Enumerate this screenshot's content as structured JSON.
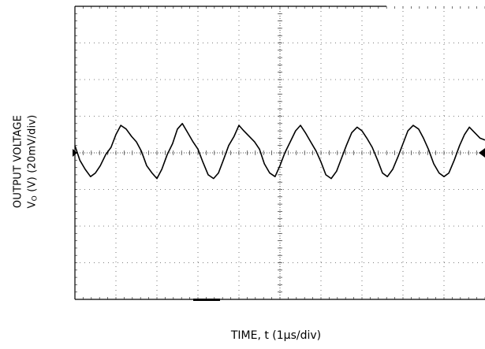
{
  "chart_data": {
    "type": "line",
    "title": "",
    "ylabel_line1": "OUTPUT VOLTAGE",
    "ylabel_line2_prefix": "V",
    "ylabel_line2_sub": "O",
    "ylabel_line2_suffix": " (V) (20mV/div)",
    "xlabel": "TIME, t (1µs/div)",
    "x_divisions": 10,
    "y_divisions": 8,
    "x_unit_per_div": "1µs",
    "y_unit_per_div": "20mV",
    "xlim": [
      0,
      10
    ],
    "ylim": [
      -80,
      80
    ],
    "grid": true,
    "grid_style": "dotted",
    "series": [
      {
        "color": "#000000",
        "x": [
          0.0,
          0.12,
          0.25,
          0.38,
          0.5,
          0.62,
          0.75,
          0.88,
          1.0,
          1.12,
          1.25,
          1.38,
          1.5,
          1.62,
          1.75,
          1.88,
          2.0,
          2.12,
          2.25,
          2.38,
          2.5,
          2.62,
          2.75,
          2.88,
          3.0,
          3.12,
          3.25,
          3.38,
          3.5,
          3.62,
          3.75,
          3.88,
          4.0,
          4.12,
          4.25,
          4.38,
          4.5,
          4.62,
          4.75,
          4.88,
          5.0,
          5.12,
          5.25,
          5.38,
          5.5,
          5.62,
          5.75,
          5.88,
          6.0,
          6.12,
          6.25,
          6.38,
          6.5,
          6.62,
          6.75,
          6.88,
          7.0,
          7.12,
          7.25,
          7.38,
          7.5,
          7.62,
          7.75,
          7.88,
          8.0,
          8.12,
          8.25,
          8.38,
          8.5,
          8.62,
          8.75,
          8.88,
          9.0,
          9.12,
          9.25,
          9.38,
          9.5,
          9.62,
          9.75,
          9.88,
          10.0
        ],
        "y": [
          4,
          -4,
          -9,
          -13,
          -11,
          -7,
          -1,
          3,
          10,
          15,
          13,
          9,
          6,
          1,
          -7,
          -11,
          -14,
          -9,
          -1,
          5,
          13,
          16,
          11,
          6,
          2,
          -5,
          -12,
          -14,
          -11,
          -4,
          4,
          9,
          15,
          12,
          9,
          6,
          2,
          -6,
          -11,
          -13,
          -7,
          0,
          6,
          12,
          15,
          11,
          6,
          1,
          -5,
          -12,
          -14,
          -10,
          -3,
          4,
          11,
          14,
          12,
          8,
          3,
          -4,
          -11,
          -13,
          -9,
          -2,
          5,
          12,
          15,
          13,
          8,
          2,
          -6,
          -11,
          -13,
          -11,
          -4,
          4,
          10,
          14,
          11,
          8,
          7
        ]
      }
    ]
  }
}
